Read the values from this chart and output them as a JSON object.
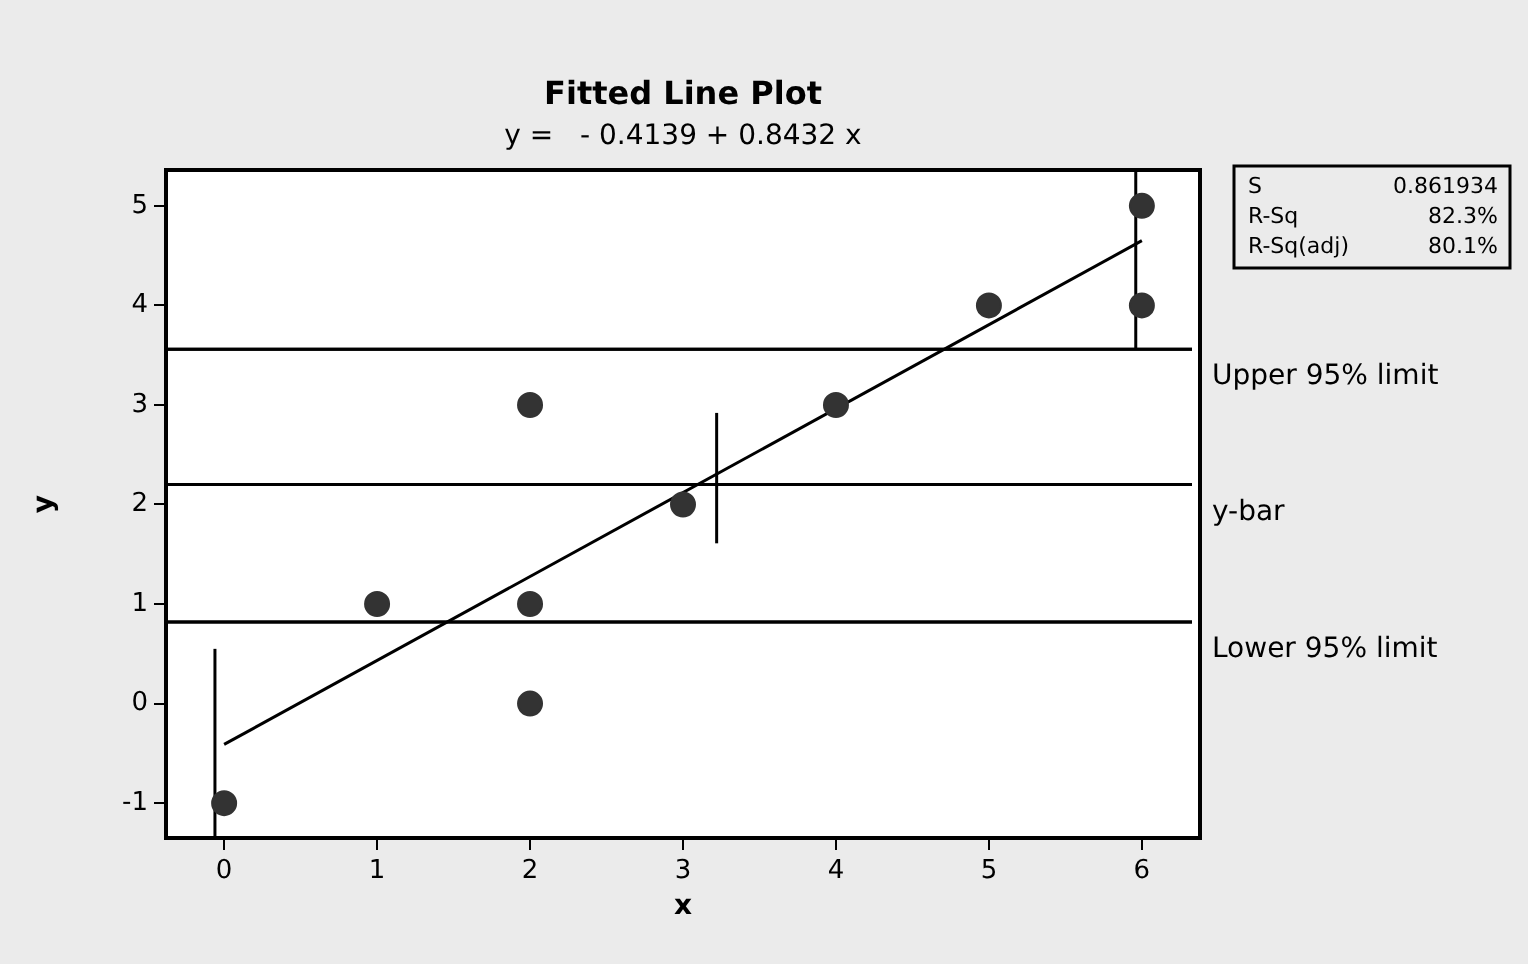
{
  "chart_data": {
    "type": "scatter",
    "title": "Fitted Line Plot",
    "subtitle": "y =   - 0.4139 + 0.8432 x",
    "xlabel": "x",
    "ylabel": "y",
    "x": [
      0,
      1,
      2,
      2,
      2,
      3,
      4,
      5,
      6,
      6
    ],
    "series": [
      {
        "color": "#333333",
        "values": [
          -1,
          1,
          3,
          1,
          0,
          2,
          3,
          4,
          5,
          4
        ]
      },
      {
        "type": "line",
        "marker": "none",
        "color": "#000000",
        "x": [
          0,
          6
        ],
        "values": [
          -0.41,
          4.65
        ]
      },
      {
        "type": "line",
        "marker": "none",
        "color": "#000000",
        "x": [
          -0.06,
          -0.06
        ],
        "values": [
          -1.35,
          0.55
        ]
      },
      {
        "type": "line",
        "marker": "none",
        "color": "#000000",
        "x": [
          3.22,
          3.22
        ],
        "values": [
          1.61,
          2.92
        ]
      },
      {
        "type": "line",
        "marker": "none",
        "color": "#000000",
        "x": [
          5.96,
          5.96
        ],
        "values": [
          3.56,
          5.36
        ]
      }
    ],
    "ref_lines": [
      {
        "axis": "y",
        "value": 3.56,
        "label": "Upper 95% limit"
      },
      {
        "axis": "y",
        "value": 2.2,
        "label": "y-bar"
      },
      {
        "axis": "y",
        "value": 0.82,
        "label": "Lower 95% limit"
      }
    ],
    "annotations": [
      "S",
      "0.861934",
      "R-Sq",
      "82.3%",
      "R-Sq(adj)",
      "80.1%"
    ],
    "xlim": [
      -0.38,
      6.38
    ],
    "xticks": [
      0,
      1,
      2,
      3,
      4,
      5,
      6
    ],
    "ylim": [
      -1.35,
      5.36
    ],
    "yticks": [
      -1,
      0,
      1,
      2,
      3,
      4,
      5
    ],
    "grid": false,
    "legend": false,
    "marker": "circle",
    "line_style": "solid"
  }
}
